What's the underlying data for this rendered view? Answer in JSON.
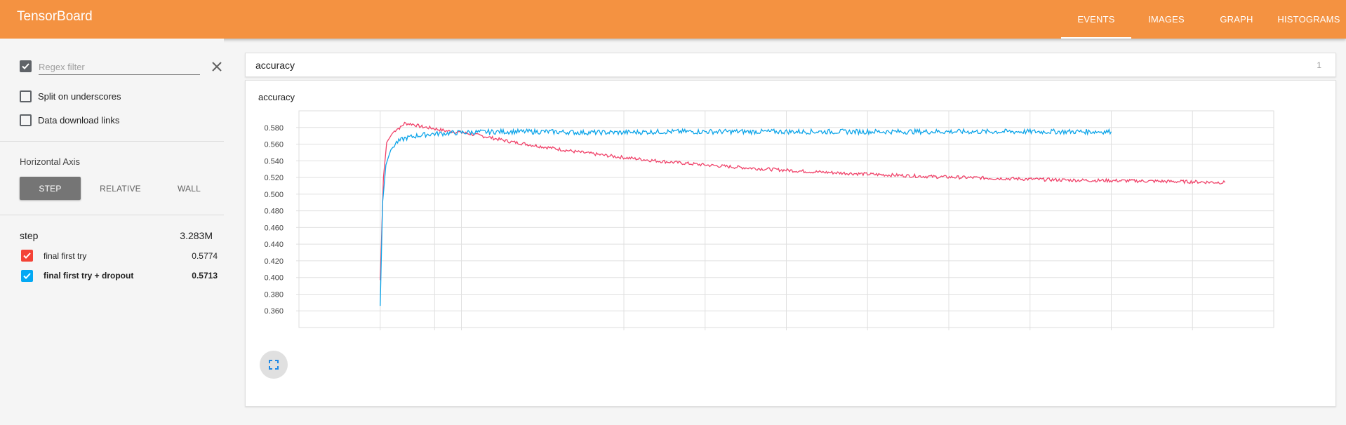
{
  "app": {
    "title": "TensorBoard"
  },
  "tabs": [
    {
      "label": "EVENTS",
      "active": true
    },
    {
      "label": "IMAGES",
      "active": false
    },
    {
      "label": "GRAPH",
      "active": false
    },
    {
      "label": "HISTOGRAMS",
      "active": false
    }
  ],
  "sidebar": {
    "regex_filter": {
      "placeholder": "Regex filter",
      "checked": true
    },
    "split_on_underscores": {
      "label": "Split on underscores",
      "checked": false
    },
    "data_download_links": {
      "label": "Data download links",
      "checked": false
    },
    "horizontal_axis": {
      "title": "Horizontal Axis",
      "options": [
        "STEP",
        "RELATIVE",
        "WALL"
      ],
      "selected": "STEP"
    },
    "step": {
      "label": "step",
      "value": "3.283M"
    },
    "runs": [
      {
        "name": "final first try",
        "value": "0.5774",
        "color": "#f44336",
        "checked": true
      },
      {
        "name": "final first try + dropout",
        "value": "0.5713",
        "color": "#03a9f4",
        "checked": true
      }
    ]
  },
  "main": {
    "card": {
      "title": "accuracy",
      "count": "1"
    }
  },
  "colors": {
    "header": "#f49241",
    "run_red": "#f0436a",
    "run_blue": "#0ea5e9"
  },
  "chart_data": {
    "type": "line",
    "title": "accuracy",
    "xlabel": "",
    "ylabel": "",
    "ylim": [
      0.34,
      0.6
    ],
    "y_ticks": [
      "0.580",
      "0.560",
      "0.540",
      "0.520",
      "0.500",
      "0.480",
      "0.460",
      "0.440",
      "0.420",
      "0.400",
      "0.380",
      "0.360"
    ],
    "y_tick_values": [
      0.58,
      0.56,
      0.54,
      0.52,
      0.5,
      0.48,
      0.46,
      0.44,
      0.42,
      0.4,
      0.38,
      0.36
    ],
    "x_tick_labels": [],
    "grid": true,
    "legend": "none",
    "series": [
      {
        "name": "final first try",
        "color": "#f0436a",
        "points": [
          [
            0.0,
            0.397
          ],
          [
            0.04,
            0.52
          ],
          [
            0.08,
            0.562
          ],
          [
            0.15,
            0.573
          ],
          [
            0.2,
            0.578
          ],
          [
            0.25,
            0.58
          ],
          [
            0.3,
            0.585
          ],
          [
            0.4,
            0.584
          ],
          [
            0.5,
            0.581
          ],
          [
            0.65,
            0.579
          ],
          [
            0.8,
            0.576
          ],
          [
            1.0,
            0.574
          ],
          [
            1.3,
            0.569
          ],
          [
            1.6,
            0.563
          ],
          [
            2.0,
            0.557
          ],
          [
            2.4,
            0.551
          ],
          [
            2.9,
            0.545
          ],
          [
            3.4,
            0.54
          ],
          [
            4.0,
            0.535
          ],
          [
            4.6,
            0.531
          ],
          [
            5.3,
            0.527
          ],
          [
            6.0,
            0.524
          ],
          [
            6.8,
            0.521
          ],
          [
            7.6,
            0.519
          ],
          [
            8.4,
            0.517
          ],
          [
            9.2,
            0.516
          ],
          [
            9.9,
            0.515
          ],
          [
            10.4,
            0.514
          ]
        ]
      },
      {
        "name": "final first try + dropout",
        "color": "#0ea5e9",
        "points": [
          [
            0.0,
            0.366
          ],
          [
            0.03,
            0.49
          ],
          [
            0.07,
            0.535
          ],
          [
            0.13,
            0.553
          ],
          [
            0.2,
            0.562
          ],
          [
            0.3,
            0.567
          ],
          [
            0.45,
            0.57
          ],
          [
            0.6,
            0.572
          ],
          [
            0.8,
            0.573
          ],
          [
            1.0,
            0.574
          ],
          [
            1.5,
            0.575
          ],
          [
            2.0,
            0.575
          ],
          [
            2.5,
            0.574
          ],
          [
            3.0,
            0.574
          ],
          [
            3.5,
            0.575
          ],
          [
            4.0,
            0.575
          ],
          [
            4.5,
            0.575
          ],
          [
            5.0,
            0.575
          ],
          [
            5.5,
            0.575
          ],
          [
            6.0,
            0.575
          ],
          [
            6.5,
            0.575
          ],
          [
            7.0,
            0.575
          ],
          [
            7.5,
            0.575
          ],
          [
            8.0,
            0.575
          ],
          [
            8.5,
            0.575
          ],
          [
            9.0,
            0.575
          ]
        ]
      }
    ]
  }
}
